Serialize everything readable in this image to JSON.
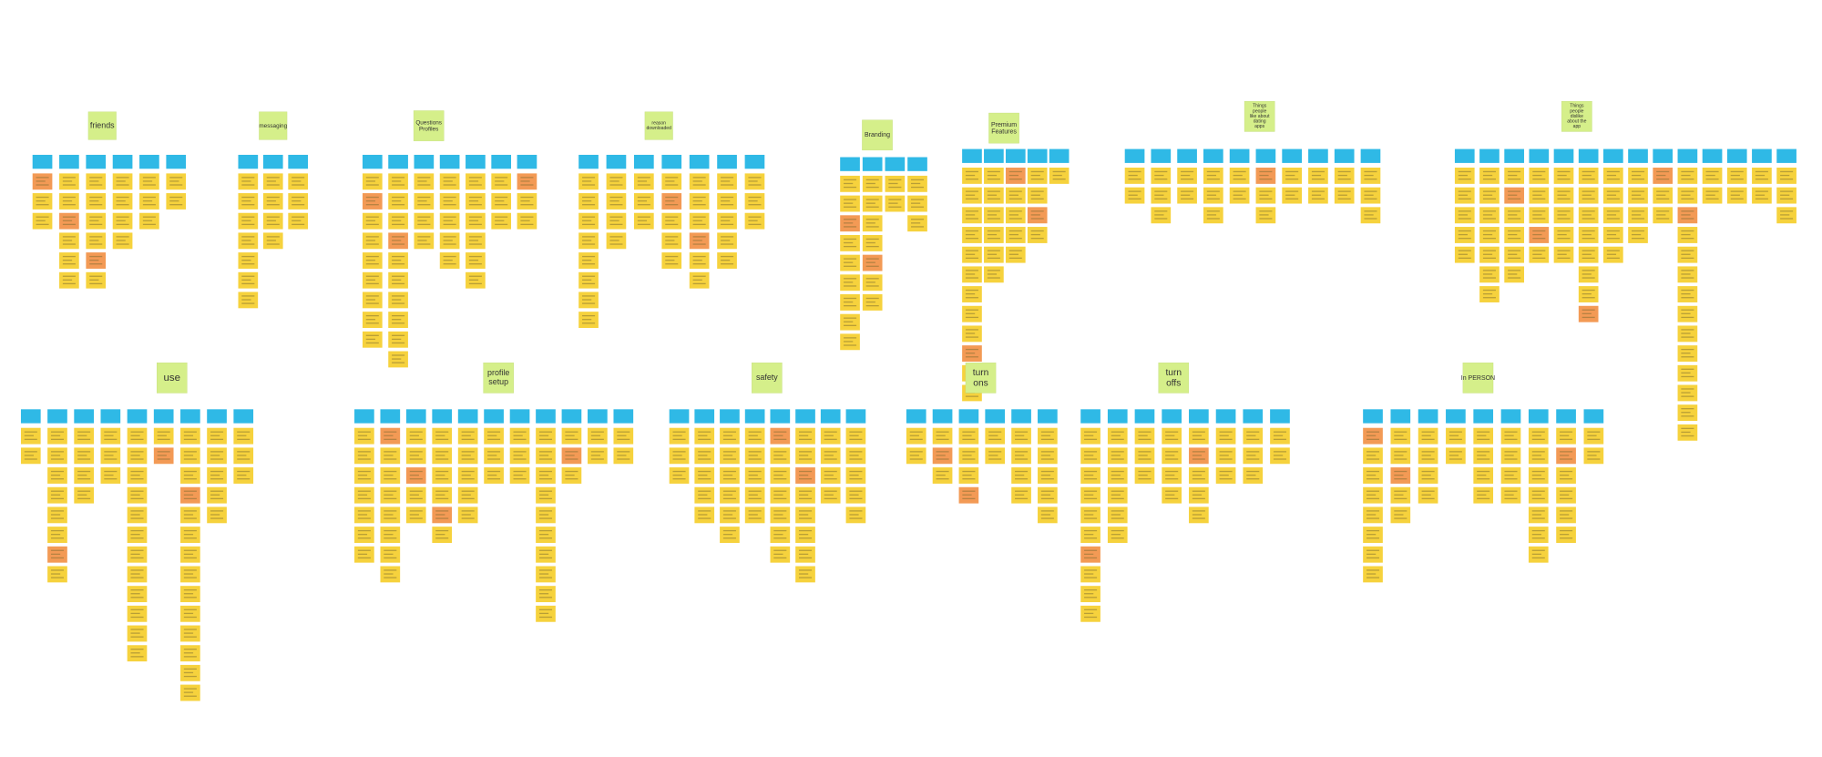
{
  "clusters": [
    {
      "label": "friends"
    },
    {
      "label": "messaging"
    },
    {
      "label": "Questions Profiles"
    },
    {
      "label": "reason downloaded"
    },
    {
      "label": "Branding"
    },
    {
      "label": "Premium Features"
    },
    {
      "label": "Things people like about dating apps"
    },
    {
      "label": "Things people dislike about the app"
    },
    {
      "label": "use"
    },
    {
      "label": "profile setup"
    },
    {
      "label": "safety"
    },
    {
      "label": "turn ons"
    },
    {
      "label": "turn offs"
    },
    {
      "label": "In PERSON"
    }
  ]
}
